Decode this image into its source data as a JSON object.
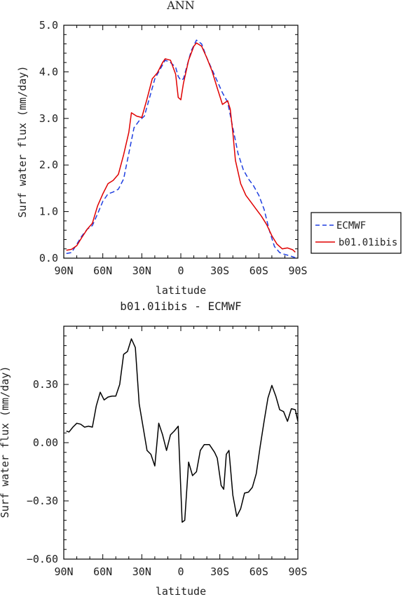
{
  "chart_data": [
    {
      "type": "line",
      "title": "ANN",
      "xlabel": "latitude",
      "ylabel": "Surf water flux (mm/day)",
      "xlim": [
        90,
        -90
      ],
      "ylim": [
        0,
        5
      ],
      "xticks": [
        {
          "value": 90,
          "label": "90N"
        },
        {
          "value": 60,
          "label": "60N"
        },
        {
          "value": 30,
          "label": "30N"
        },
        {
          "value": 0,
          "label": "0"
        },
        {
          "value": -30,
          "label": "30S"
        },
        {
          "value": -60,
          "label": "60S"
        },
        {
          "value": -90,
          "label": "90S"
        }
      ],
      "yticks": [
        {
          "value": 0,
          "label": "0.0"
        },
        {
          "value": 1,
          "label": "1.0"
        },
        {
          "value": 2,
          "label": "2.0"
        },
        {
          "value": 3,
          "label": "3.0"
        },
        {
          "value": 4,
          "label": "4.0"
        },
        {
          "value": 5,
          "label": "5.0"
        }
      ],
      "legend_position": "right",
      "series": [
        {
          "name": "ECMWF",
          "color": "#1f3fe0",
          "dash": "dashed",
          "points": [
            [
              88,
              0.1
            ],
            [
              84,
              0.12
            ],
            [
              80,
              0.3
            ],
            [
              76,
              0.48
            ],
            [
              72,
              0.62
            ],
            [
              68,
              0.7
            ],
            [
              64,
              0.95
            ],
            [
              60,
              1.22
            ],
            [
              56,
              1.38
            ],
            [
              52,
              1.42
            ],
            [
              48,
              1.48
            ],
            [
              44,
              1.7
            ],
            [
              40,
              2.25
            ],
            [
              36,
              2.8
            ],
            [
              32,
              2.95
            ],
            [
              28,
              3.05
            ],
            [
              24,
              3.45
            ],
            [
              20,
              3.85
            ],
            [
              16,
              4.05
            ],
            [
              12,
              4.25
            ],
            [
              8,
              4.2
            ],
            [
              4,
              4.1
            ],
            [
              2,
              3.9
            ],
            [
              0,
              3.82
            ],
            [
              -2,
              3.85
            ],
            [
              -4,
              4.05
            ],
            [
              -8,
              4.45
            ],
            [
              -12,
              4.68
            ],
            [
              -16,
              4.6
            ],
            [
              -20,
              4.3
            ],
            [
              -24,
              4.05
            ],
            [
              -28,
              3.8
            ],
            [
              -32,
              3.55
            ],
            [
              -36,
              3.35
            ],
            [
              -40,
              2.8
            ],
            [
              -44,
              2.25
            ],
            [
              -48,
              1.9
            ],
            [
              -52,
              1.7
            ],
            [
              -56,
              1.55
            ],
            [
              -60,
              1.35
            ],
            [
              -64,
              1.05
            ],
            [
              -68,
              0.6
            ],
            [
              -72,
              0.25
            ],
            [
              -76,
              0.12
            ],
            [
              -80,
              0.08
            ],
            [
              -84,
              0.05
            ],
            [
              -88,
              0.01
            ]
          ]
        },
        {
          "name": "b01.01ibis",
          "color": "#e00000",
          "dash": "solid",
          "points": [
            [
              88,
              0.17
            ],
            [
              84,
              0.19
            ],
            [
              80,
              0.27
            ],
            [
              76,
              0.45
            ],
            [
              72,
              0.62
            ],
            [
              68,
              0.75
            ],
            [
              64,
              1.12
            ],
            [
              60,
              1.38
            ],
            [
              56,
              1.6
            ],
            [
              52,
              1.67
            ],
            [
              48,
              1.8
            ],
            [
              44,
              2.22
            ],
            [
              40,
              2.7
            ],
            [
              38,
              3.12
            ],
            [
              34,
              3.05
            ],
            [
              30,
              3.02
            ],
            [
              26,
              3.42
            ],
            [
              22,
              3.85
            ],
            [
              18,
              3.98
            ],
            [
              14,
              4.2
            ],
            [
              12,
              4.28
            ],
            [
              8,
              4.25
            ],
            [
              4,
              3.95
            ],
            [
              2,
              3.45
            ],
            [
              0,
              3.4
            ],
            [
              -2,
              3.75
            ],
            [
              -6,
              4.25
            ],
            [
              -10,
              4.55
            ],
            [
              -12,
              4.62
            ],
            [
              -16,
              4.55
            ],
            [
              -20,
              4.3
            ],
            [
              -24,
              4.02
            ],
            [
              -28,
              3.65
            ],
            [
              -32,
              3.3
            ],
            [
              -36,
              3.38
            ],
            [
              -38,
              3.2
            ],
            [
              -40,
              2.7
            ],
            [
              -42,
              2.1
            ],
            [
              -46,
              1.6
            ],
            [
              -50,
              1.35
            ],
            [
              -54,
              1.2
            ],
            [
              -58,
              1.05
            ],
            [
              -62,
              0.9
            ],
            [
              -66,
              0.72
            ],
            [
              -70,
              0.48
            ],
            [
              -74,
              0.3
            ],
            [
              -78,
              0.2
            ],
            [
              -82,
              0.22
            ],
            [
              -86,
              0.18
            ],
            [
              -88,
              0.13
            ]
          ]
        }
      ]
    },
    {
      "type": "line",
      "title": "b01.01ibis - ECMWF",
      "xlabel": "latitude",
      "ylabel": "Surf water flux (mm/day)",
      "xlim": [
        90,
        -90
      ],
      "ylim": [
        -0.6,
        0.6
      ],
      "xticks": [
        {
          "value": 90,
          "label": "90N"
        },
        {
          "value": 60,
          "label": "60N"
        },
        {
          "value": 30,
          "label": "30N"
        },
        {
          "value": 0,
          "label": "0"
        },
        {
          "value": -30,
          "label": "30S"
        },
        {
          "value": -60,
          "label": "60S"
        },
        {
          "value": -90,
          "label": "90S"
        }
      ],
      "yticks": [
        {
          "value": -0.6,
          "label": "−0.60"
        },
        {
          "value": -0.3,
          "label": "−0.30"
        },
        {
          "value": 0,
          "label": "0.00"
        },
        {
          "value": 0.3,
          "label": "0.30"
        }
      ],
      "series": [
        {
          "name": "",
          "color": "#000000",
          "dash": "solid",
          "points": [
            [
              88,
              0.06
            ],
            [
              86,
              0.055
            ],
            [
              83,
              0.08
            ],
            [
              80,
              0.1
            ],
            [
              77,
              0.095
            ],
            [
              74,
              0.08
            ],
            [
              71,
              0.085
            ],
            [
              68,
              0.08
            ],
            [
              65,
              0.19
            ],
            [
              62,
              0.26
            ],
            [
              59,
              0.22
            ],
            [
              56,
              0.235
            ],
            [
              53,
              0.24
            ],
            [
              50,
              0.24
            ],
            [
              47,
              0.3
            ],
            [
              44,
              0.455
            ],
            [
              41,
              0.47
            ],
            [
              38,
              0.535
            ],
            [
              35,
              0.49
            ],
            [
              32,
              0.2
            ],
            [
              29,
              0.08
            ],
            [
              26,
              -0.04
            ],
            [
              23,
              -0.06
            ],
            [
              20,
              -0.12
            ],
            [
              17,
              0.1
            ],
            [
              14,
              0.04
            ],
            [
              11,
              -0.04
            ],
            [
              8,
              0.04
            ],
            [
              5,
              0.06
            ],
            [
              2,
              0.085
            ],
            [
              -1,
              -0.41
            ],
            [
              -3,
              -0.4
            ],
            [
              -6,
              -0.1
            ],
            [
              -9,
              -0.17
            ],
            [
              -12,
              -0.15
            ],
            [
              -15,
              -0.04
            ],
            [
              -18,
              -0.01
            ],
            [
              -22,
              -0.01
            ],
            [
              -26,
              -0.05
            ],
            [
              -28,
              -0.08
            ],
            [
              -31,
              -0.22
            ],
            [
              -33,
              -0.24
            ],
            [
              -35,
              -0.06
            ],
            [
              -37,
              -0.04
            ],
            [
              -40,
              -0.27
            ],
            [
              -43,
              -0.38
            ],
            [
              -46,
              -0.34
            ],
            [
              -49,
              -0.26
            ],
            [
              -52,
              -0.255
            ],
            [
              -55,
              -0.23
            ],
            [
              -58,
              -0.16
            ],
            [
              -61,
              -0.02
            ],
            [
              -64,
              0.11
            ],
            [
              -67,
              0.23
            ],
            [
              -70,
              0.295
            ],
            [
              -73,
              0.24
            ],
            [
              -76,
              0.17
            ],
            [
              -79,
              0.16
            ],
            [
              -82,
              0.11
            ],
            [
              -85,
              0.175
            ],
            [
              -88,
              0.17
            ],
            [
              -90,
              0.11
            ]
          ]
        }
      ]
    }
  ]
}
